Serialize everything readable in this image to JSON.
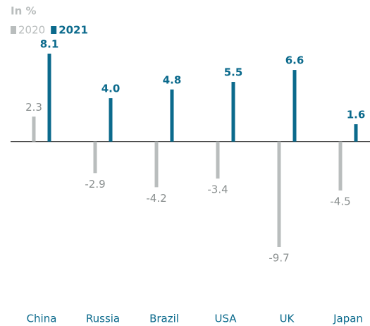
{
  "chart_data": {
    "type": "bar",
    "subtitle": "In %",
    "categories": [
      "China",
      "Russia",
      "Brazil",
      "USA",
      "UK",
      "Japan"
    ],
    "series": [
      {
        "name": "2020",
        "color": "#b9bdbd",
        "values": [
          2.3,
          -2.9,
          -4.2,
          -3.4,
          -9.7,
          -4.5
        ]
      },
      {
        "name": "2021",
        "color": "#0b6a8c",
        "values": [
          8.1,
          4.0,
          4.8,
          5.5,
          6.6,
          1.6
        ],
        "value_labels": [
          "8.1",
          "4.0",
          "4.8",
          "5.5",
          "6.6",
          "1.6"
        ]
      }
    ]
  }
}
